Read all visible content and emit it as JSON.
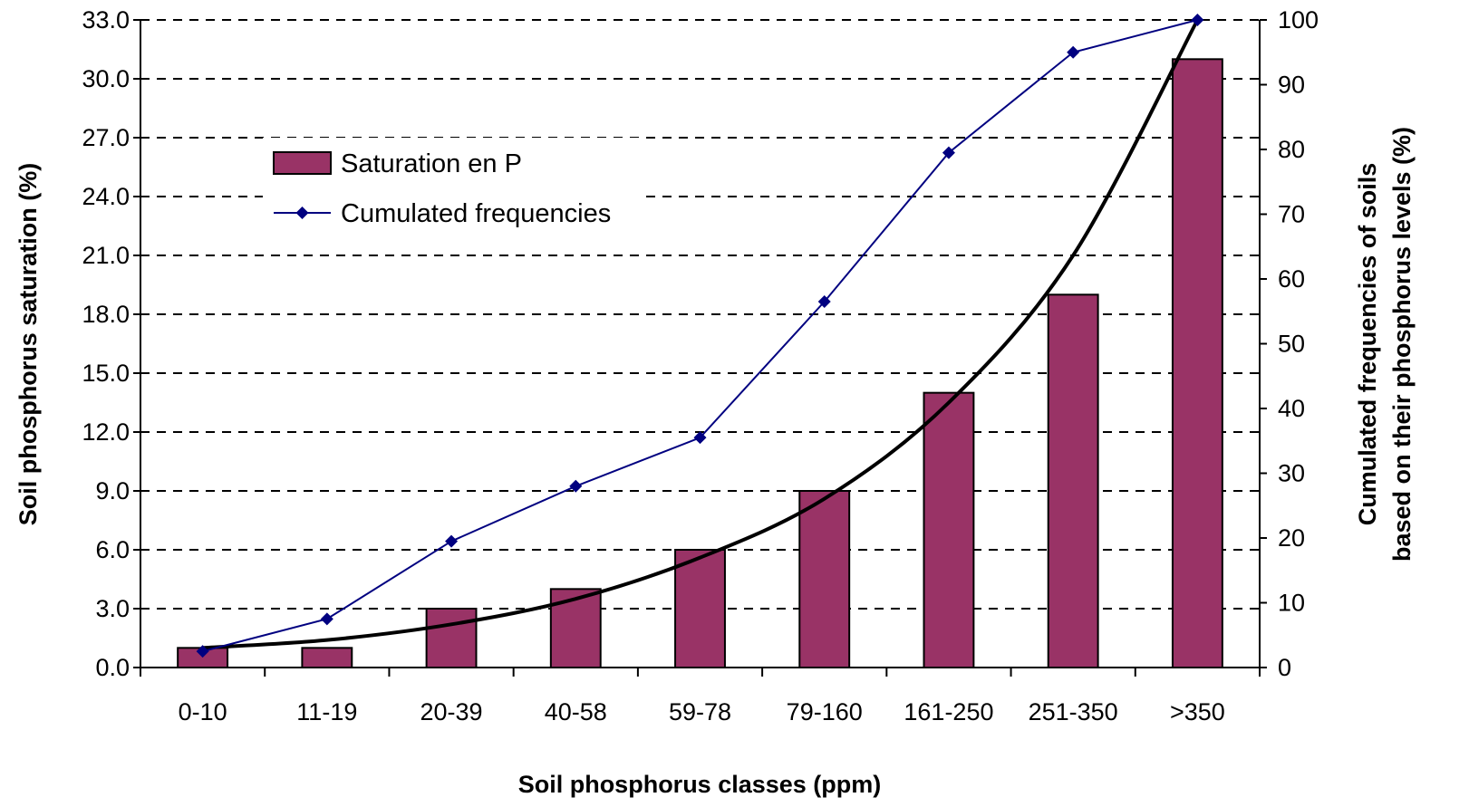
{
  "chart_data": {
    "type": "bar",
    "categories": [
      "0-10",
      "11-19",
      "20-39",
      "40-58",
      "59-78",
      "79-160",
      "161-250",
      "251-350",
      ">350"
    ],
    "series": [
      {
        "name": "Saturation en P",
        "type": "bar",
        "axis": "left",
        "values": [
          1.0,
          1.0,
          3.0,
          4.0,
          6.0,
          9.0,
          14.0,
          19.0,
          31.0
        ],
        "color": "#993366"
      },
      {
        "name": "Cumulated frequencies",
        "type": "line",
        "marker": "diamond",
        "axis": "right",
        "values": [
          2.5,
          7.5,
          19.5,
          28,
          35.5,
          56.5,
          79.5,
          95,
          100
        ],
        "color": "#000080"
      }
    ],
    "trendline": {
      "type": "exponential",
      "axis": "left",
      "values": [
        1.0,
        1.4,
        2.2,
        3.5,
        5.6,
        8.6,
        13.5,
        21.0,
        33.0
      ],
      "color": "#000000"
    },
    "xlabel": "Soil phosphorus classes (ppm)",
    "ylabel": "Soil phosphorus saturation (%)",
    "y2label_lines": [
      "Cumulated frequencies of soils",
      "based on their phosphorus levels (%)"
    ],
    "ylim": [
      0,
      33
    ],
    "yticks": [
      "0.0",
      "3.0",
      "6.0",
      "9.0",
      "12.0",
      "15.0",
      "18.0",
      "21.0",
      "24.0",
      "27.0",
      "30.0",
      "33.0"
    ],
    "y2lim": [
      0,
      100
    ],
    "y2ticks": [
      "0",
      "10",
      "20",
      "30",
      "40",
      "50",
      "60",
      "70",
      "80",
      "90",
      "100"
    ],
    "grid": true,
    "legend_position": "upper-left"
  }
}
